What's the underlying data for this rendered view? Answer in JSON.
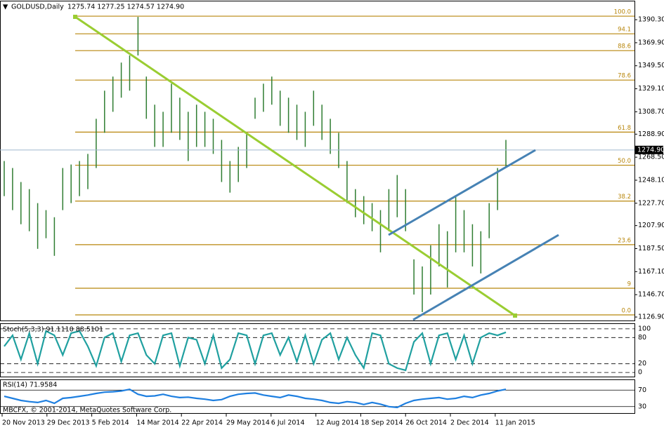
{
  "chart_data": [
    {
      "type": "range-bar",
      "title": "GOLDUSD,Daily",
      "ohlc_label": "1275.74 1277.25 1274.57 1274.90",
      "color": "#2f7d32",
      "x_labels": [
        "20 Nov 2013",
        "29 Dec 2013",
        "5 Feb 2014",
        "14 Mar 2014",
        "22 Apr 2014",
        "29 May 2014",
        "6 Jul 2014",
        "12 Aug 2014",
        "18 Sep 2014",
        "26 Oct 2014",
        "2 Dec 2014",
        "11 Jan 2015"
      ],
      "high": [
        1265.1,
        1258.9,
        1246.5,
        1240.2,
        1227.8,
        1221.6,
        1215.3,
        1258.9,
        1262.0,
        1265.1,
        1271.4,
        1302.5,
        1327.4,
        1339.9,
        1352.3,
        1358.6,
        1392.8,
        1339.9,
        1315.0,
        1308.7,
        1333.6,
        1321.2,
        1308.7,
        1315.0,
        1308.7,
        1302.5,
        1283.8,
        1265.1,
        1277.6,
        1290.1,
        1321.2,
        1333.6,
        1339.9,
        1327.4,
        1321.2,
        1315.0,
        1308.7,
        1327.4,
        1315.0,
        1302.5,
        1290.1,
        1265.1,
        1240.2,
        1234.0,
        1227.8,
        1221.6,
        1240.2,
        1252.7,
        1240.2,
        1178.0,
        1171.7,
        1190.4,
        1209.1,
        1202.9,
        1234.0,
        1221.6,
        1209.1,
        1202.9,
        1227.8,
        1258.9,
        1283.8
      ],
      "low": [
        1234.0,
        1221.6,
        1209.1,
        1202.9,
        1187.3,
        1196.7,
        1181.1,
        1221.6,
        1227.8,
        1234.0,
        1240.2,
        1258.9,
        1290.1,
        1308.7,
        1321.2,
        1327.4,
        1358.6,
        1302.5,
        1277.6,
        1277.6,
        1290.1,
        1283.8,
        1265.1,
        1277.6,
        1277.6,
        1271.4,
        1246.5,
        1237.1,
        1246.5,
        1258.9,
        1302.5,
        1308.7,
        1315.0,
        1296.3,
        1290.1,
        1283.8,
        1277.6,
        1296.3,
        1283.8,
        1271.4,
        1258.9,
        1227.8,
        1215.3,
        1209.1,
        1202.9,
        1184.2,
        1202.9,
        1215.3,
        1202.9,
        1146.8,
        1131.3,
        1146.8,
        1171.7,
        1153.1,
        1184.2,
        1184.2,
        1171.7,
        1165.5,
        1196.7,
        1221.6,
        1258.9
      ],
      "ylim": [
        1123.2,
        1406.5
      ],
      "yticks": [
        {
          "value": 1390.3,
          "label": "1390.30"
        },
        {
          "value": 1369.9,
          "label": "1369.90"
        },
        {
          "value": 1349.5,
          "label": "1349.50"
        },
        {
          "value": 1329.1,
          "label": "1329.10"
        },
        {
          "value": 1308.7,
          "label": "1308.70"
        },
        {
          "value": 1288.9,
          "label": "1288.90"
        },
        {
          "value": 1268.5,
          "label": "1268.50"
        },
        {
          "value": 1248.1,
          "label": "1248.10"
        },
        {
          "value": 1227.7,
          "label": "1227.70"
        },
        {
          "value": 1207.9,
          "label": "1207.90"
        },
        {
          "value": 1187.5,
          "label": "1187.50"
        },
        {
          "value": 1167.1,
          "label": "1167.10"
        },
        {
          "value": 1146.7,
          "label": "1146.70"
        },
        {
          "value": 1126.9,
          "label": "1126.90"
        }
      ],
      "fib_color": "#b8860b",
      "fib_levels": [
        {
          "value": 1393.4,
          "label": "100.0"
        },
        {
          "value": 1377.8,
          "label": "94.1"
        },
        {
          "value": 1362.9,
          "label": "88.6"
        },
        {
          "value": 1336.8,
          "label": "78.6"
        },
        {
          "value": 1290.7,
          "label": "61.8"
        },
        {
          "value": 1261.4,
          "label": "50.0"
        },
        {
          "value": 1229.6,
          "label": "38.2"
        },
        {
          "value": 1191.0,
          "label": "23.6"
        },
        {
          "value": 1152.4,
          "label": "9"
        },
        {
          "value": 1128.8,
          "label": "0.0"
        }
      ],
      "last_price": {
        "value": 1274.9,
        "label": "1274.90"
      }
    },
    {
      "type": "line",
      "title": "Stoch(5,3,3) 91.1110 88.5101",
      "color": "#20a0a0",
      "values": [
        60,
        85,
        30,
        90,
        20,
        95,
        85,
        40,
        90,
        95,
        60,
        15,
        80,
        90,
        25,
        85,
        90,
        40,
        20,
        85,
        90,
        15,
        80,
        75,
        20,
        85,
        10,
        30,
        90,
        85,
        20,
        85,
        90,
        40,
        80,
        25,
        85,
        20,
        75,
        90,
        30,
        80,
        40,
        10,
        90,
        85,
        20,
        10,
        5,
        70,
        90,
        20,
        85,
        90,
        30,
        85,
        20,
        80,
        90,
        85,
        92
      ],
      "ylim": [
        -11,
        111
      ],
      "yticks": [
        0,
        20,
        80,
        100
      ],
      "grid_style": "dashed"
    },
    {
      "type": "line",
      "title": "RSI(14) 71.9584",
      "color": "#1e7fe0",
      "values": [
        55,
        50,
        45,
        42,
        40,
        45,
        38,
        50,
        52,
        55,
        58,
        62,
        65,
        66,
        68,
        72,
        60,
        55,
        56,
        60,
        55,
        52,
        53,
        50,
        48,
        45,
        47,
        55,
        60,
        62,
        63,
        58,
        55,
        52,
        58,
        55,
        50,
        48,
        45,
        40,
        38,
        42,
        40,
        35,
        40,
        36,
        30,
        28,
        38,
        45,
        48,
        50,
        52,
        48,
        50,
        55,
        52,
        58,
        62,
        68,
        72
      ],
      "ylim": [
        12.6,
        94.3
      ],
      "yticks": [
        30,
        70
      ],
      "grid_style": "solid",
      "note": "MBCFX, © 2001-2014, MetaQuotes Software Corp."
    }
  ]
}
